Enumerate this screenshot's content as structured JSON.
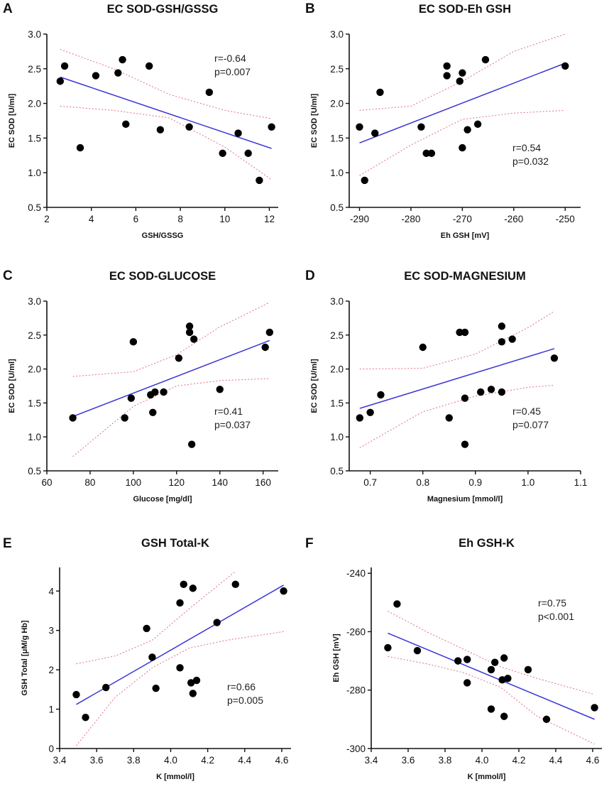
{
  "chart_data": [
    {
      "panel": "A",
      "type": "scatter",
      "title": "EC SOD-GSH/GSSG",
      "xlabel": "GSH/GSSG",
      "ylabel": "EC SOD [U/ml]",
      "xlim": [
        2,
        12.4
      ],
      "ylim": [
        0.5,
        3.0
      ],
      "xticks": [
        2,
        4,
        6,
        8,
        10,
        12
      ],
      "xtick_labels": [
        "2",
        "4",
        "6",
        "8",
        "10",
        "12"
      ],
      "yticks": [
        0.5,
        1.0,
        1.5,
        2.0,
        2.5,
        3.0
      ],
      "ytick_labels": [
        "0.5",
        "1.0",
        "1.5",
        "2.0",
        "2.5",
        "3.0"
      ],
      "stats": [
        "r=-0.64",
        "p=0.007"
      ],
      "points": [
        [
          2.6,
          2.32
        ],
        [
          2.8,
          2.54
        ],
        [
          3.5,
          1.36
        ],
        [
          4.2,
          2.4
        ],
        [
          5.2,
          2.44
        ],
        [
          5.4,
          2.63
        ],
        [
          5.55,
          1.7
        ],
        [
          6.6,
          2.54
        ],
        [
          7.1,
          1.62
        ],
        [
          8.4,
          1.66
        ],
        [
          9.3,
          2.16
        ],
        [
          9.9,
          1.28
        ],
        [
          10.6,
          1.57
        ],
        [
          11.05,
          1.28
        ],
        [
          11.55,
          0.89
        ],
        [
          12.1,
          1.66
        ]
      ],
      "fit": [
        [
          2.6,
          2.38
        ],
        [
          12.1,
          1.35
        ]
      ],
      "ci_upper": [
        [
          2.6,
          2.78
        ],
        [
          5,
          2.5
        ],
        [
          7.5,
          2.13
        ],
        [
          10,
          1.9
        ],
        [
          12.1,
          1.78
        ]
      ],
      "ci_lower": [
        [
          2.6,
          1.96
        ],
        [
          5,
          1.9
        ],
        [
          7.5,
          1.79
        ],
        [
          10,
          1.37
        ],
        [
          12.1,
          0.9
        ]
      ]
    },
    {
      "panel": "B",
      "type": "scatter",
      "title": "EC SOD-Eh GSH",
      "xlabel": "Eh GSH [mV]",
      "ylabel": "EC SOD [U/ml]",
      "xlim": [
        -292,
        -247
      ],
      "ylim": [
        0.5,
        3.0
      ],
      "xticks": [
        -290,
        -280,
        -270,
        -260,
        -250
      ],
      "xtick_labels": [
        "-290",
        "-280",
        "-270",
        "-260",
        "-250"
      ],
      "yticks": [
        0.5,
        1.0,
        1.5,
        2.0,
        2.5,
        3.0
      ],
      "ytick_labels": [
        "0.5",
        "1.0",
        "1.5",
        "2.0",
        "2.5",
        "3.0"
      ],
      "stats": [
        "r=0.54",
        "p=0.032"
      ],
      "points": [
        [
          -290,
          1.66
        ],
        [
          -289,
          0.89
        ],
        [
          -287,
          1.57
        ],
        [
          -286,
          2.16
        ],
        [
          -278,
          1.66
        ],
        [
          -277,
          1.28
        ],
        [
          -276,
          1.28
        ],
        [
          -273,
          2.54
        ],
        [
          -273,
          2.4
        ],
        [
          -270.5,
          2.32
        ],
        [
          -270,
          2.44
        ],
        [
          -270,
          1.36
        ],
        [
          -269,
          1.62
        ],
        [
          -267,
          1.7
        ],
        [
          -265.5,
          2.63
        ],
        [
          -250,
          2.54
        ]
      ],
      "fit": [
        [
          -290,
          1.43
        ],
        [
          -250,
          2.58
        ]
      ],
      "ci_upper": [
        [
          -290,
          1.9
        ],
        [
          -280,
          1.96
        ],
        [
          -270,
          2.32
        ],
        [
          -260,
          2.75
        ],
        [
          -250,
          3.0
        ]
      ],
      "ci_lower": [
        [
          -290,
          0.96
        ],
        [
          -280,
          1.4
        ],
        [
          -270,
          1.77
        ],
        [
          -260,
          1.86
        ],
        [
          -250,
          1.9
        ]
      ]
    },
    {
      "panel": "C",
      "type": "scatter",
      "title": "EC SOD-GLUCOSE",
      "xlabel": "Glucose [mg/dl]",
      "ylabel": "EC SOD [U/ml]",
      "xlim": [
        60,
        167
      ],
      "ylim": [
        0.5,
        3.0
      ],
      "xticks": [
        60,
        80,
        100,
        120,
        140,
        160
      ],
      "xtick_labels": [
        "60",
        "80",
        "100",
        "120",
        "140",
        "160"
      ],
      "yticks": [
        0.5,
        1.0,
        1.5,
        2.0,
        2.5,
        3.0
      ],
      "ytick_labels": [
        "0.5",
        "1.0",
        "1.5",
        "2.0",
        "2.5",
        "3.0"
      ],
      "stats": [
        "r=0.41",
        "p=0.037"
      ],
      "points": [
        [
          72,
          1.28
        ],
        [
          96,
          1.28
        ],
        [
          99,
          1.57
        ],
        [
          100,
          2.4
        ],
        [
          108,
          1.62
        ],
        [
          109,
          1.36
        ],
        [
          110,
          1.66
        ],
        [
          114,
          1.66
        ],
        [
          121,
          2.16
        ],
        [
          126,
          2.63
        ],
        [
          126,
          2.54
        ],
        [
          127,
          0.89
        ],
        [
          128,
          2.44
        ],
        [
          140,
          1.7
        ],
        [
          161,
          2.32
        ],
        [
          163,
          2.54
        ]
      ],
      "fit": [
        [
          72,
          1.3
        ],
        [
          163,
          2.42
        ]
      ],
      "ci_upper": [
        [
          72,
          1.89
        ],
        [
          100,
          1.96
        ],
        [
          120,
          2.21
        ],
        [
          140,
          2.62
        ],
        [
          163,
          2.98
        ]
      ],
      "ci_lower": [
        [
          72,
          0.71
        ],
        [
          100,
          1.45
        ],
        [
          120,
          1.75
        ],
        [
          140,
          1.83
        ],
        [
          163,
          1.86
        ]
      ]
    },
    {
      "panel": "D",
      "type": "scatter",
      "title": "EC SOD-MAGNESIUM",
      "xlabel": "Magnesium [mmol/l]",
      "ylabel": "EC SOD [U/ml]",
      "xlim": [
        0.66,
        1.1
      ],
      "ylim": [
        0.5,
        3.0
      ],
      "xticks": [
        0.7,
        0.8,
        0.9,
        1.0,
        1.1
      ],
      "xtick_labels": [
        "0.7",
        "0.8",
        "0.9",
        "1.0",
        "1.1"
      ],
      "yticks": [
        0.5,
        1.0,
        1.5,
        2.0,
        2.5,
        3.0
      ],
      "ytick_labels": [
        "0.5",
        "1.0",
        "1.5",
        "2.0",
        "2.5",
        "3.0"
      ],
      "stats": [
        "r=0.45",
        "p=0.077"
      ],
      "points": [
        [
          0.68,
          1.28
        ],
        [
          0.7,
          1.36
        ],
        [
          0.72,
          1.62
        ],
        [
          0.8,
          2.32
        ],
        [
          0.85,
          1.28
        ],
        [
          0.87,
          2.54
        ],
        [
          0.88,
          2.54
        ],
        [
          0.88,
          1.57
        ],
        [
          0.88,
          0.89
        ],
        [
          0.91,
          1.66
        ],
        [
          0.93,
          1.7
        ],
        [
          0.95,
          2.63
        ],
        [
          0.95,
          2.4
        ],
        [
          0.95,
          1.66
        ],
        [
          0.97,
          2.44
        ],
        [
          1.05,
          2.16
        ]
      ],
      "fit": [
        [
          0.68,
          1.42
        ],
        [
          1.05,
          2.3
        ]
      ],
      "ci_upper": [
        [
          0.68,
          2.0
        ],
        [
          0.8,
          2.01
        ],
        [
          0.9,
          2.22
        ],
        [
          1.0,
          2.61
        ],
        [
          1.05,
          2.85
        ]
      ],
      "ci_lower": [
        [
          0.68,
          0.84
        ],
        [
          0.8,
          1.37
        ],
        [
          0.9,
          1.6
        ],
        [
          1.0,
          1.73
        ],
        [
          1.05,
          1.76
        ]
      ]
    },
    {
      "panel": "E",
      "type": "scatter",
      "title": "GSH Total-K",
      "xlabel": "K [mmol/l]",
      "ylabel": "GSH Total [μM/g Hb]",
      "xlim": [
        3.4,
        4.65
      ],
      "ylim": [
        0,
        4.6
      ],
      "xticks": [
        3.4,
        3.6,
        3.8,
        4.0,
        4.2,
        4.4,
        4.6
      ],
      "xtick_labels": [
        "3.4",
        "3.6",
        "3.8",
        "4.0",
        "4.2",
        "4.4",
        "4.6"
      ],
      "yticks": [
        0,
        1,
        2,
        3,
        4
      ],
      "ytick_labels": [
        "0",
        "1",
        "2",
        "3",
        "4"
      ],
      "stats": [
        "r=0.66",
        "p=0.005"
      ],
      "points": [
        [
          3.49,
          1.37
        ],
        [
          3.54,
          0.79
        ],
        [
          3.65,
          1.55
        ],
        [
          3.87,
          3.05
        ],
        [
          3.9,
          2.32
        ],
        [
          3.92,
          1.53
        ],
        [
          4.05,
          3.7
        ],
        [
          4.05,
          2.05
        ],
        [
          4.07,
          4.17
        ],
        [
          4.11,
          1.67
        ],
        [
          4.12,
          1.4
        ],
        [
          4.12,
          4.07
        ],
        [
          4.14,
          1.73
        ],
        [
          4.25,
          3.2
        ],
        [
          4.35,
          4.17
        ],
        [
          4.61,
          4.0
        ]
      ],
      "fit": [
        [
          3.49,
          1.12
        ],
        [
          4.61,
          4.15
        ]
      ],
      "ci_upper": [
        [
          3.49,
          2.15
        ],
        [
          3.7,
          2.35
        ],
        [
          3.9,
          2.75
        ],
        [
          4.1,
          3.55
        ],
        [
          4.35,
          4.5
        ]
      ],
      "ci_lower": [
        [
          3.49,
          0.07
        ],
        [
          3.7,
          1.3
        ],
        [
          3.9,
          2.05
        ],
        [
          4.1,
          2.55
        ],
        [
          4.3,
          2.75
        ],
        [
          4.61,
          2.97
        ]
      ]
    },
    {
      "panel": "F",
      "type": "scatter",
      "title": "Eh GSH-K",
      "xlabel": "K [mmol/l]",
      "ylabel": "Eh GSH [mV]",
      "xlim": [
        3.4,
        4.65
      ],
      "ylim": [
        -300,
        -238
      ],
      "xticks": [
        3.4,
        3.6,
        3.8,
        4.0,
        4.2,
        4.4,
        4.6
      ],
      "xtick_labels": [
        "3.4",
        "3.6",
        "3.8",
        "4.0",
        "4.2",
        "4.4",
        "4.6"
      ],
      "yticks": [
        -300,
        -280,
        -260,
        -240
      ],
      "ytick_labels": [
        "-300",
        "-280",
        "-260",
        "-240"
      ],
      "stats": [
        "r=0.75",
        "p<0.001"
      ],
      "points": [
        [
          3.49,
          -265.5
        ],
        [
          3.54,
          -250.5
        ],
        [
          3.65,
          -266.5
        ],
        [
          3.87,
          -270
        ],
        [
          3.92,
          -277.5
        ],
        [
          3.92,
          -269.5
        ],
        [
          4.05,
          -273
        ],
        [
          4.05,
          -286.5
        ],
        [
          4.07,
          -270.5
        ],
        [
          4.11,
          -276.5
        ],
        [
          4.12,
          -269
        ],
        [
          4.12,
          -289
        ],
        [
          4.14,
          -276
        ],
        [
          4.25,
          -273
        ],
        [
          4.35,
          -290
        ],
        [
          4.61,
          -286
        ]
      ],
      "fit": [
        [
          3.49,
          -260.5
        ],
        [
          4.61,
          -290
        ]
      ],
      "ci_upper": [
        [
          3.49,
          -253
        ],
        [
          3.7,
          -260
        ],
        [
          3.9,
          -266
        ],
        [
          4.1,
          -272
        ],
        [
          4.3,
          -276
        ],
        [
          4.61,
          -281.5
        ]
      ],
      "ci_lower": [
        [
          3.49,
          -268.5
        ],
        [
          3.7,
          -271
        ],
        [
          3.9,
          -274
        ],
        [
          4.1,
          -279
        ],
        [
          4.3,
          -289
        ],
        [
          4.61,
          -298.5
        ]
      ]
    }
  ]
}
